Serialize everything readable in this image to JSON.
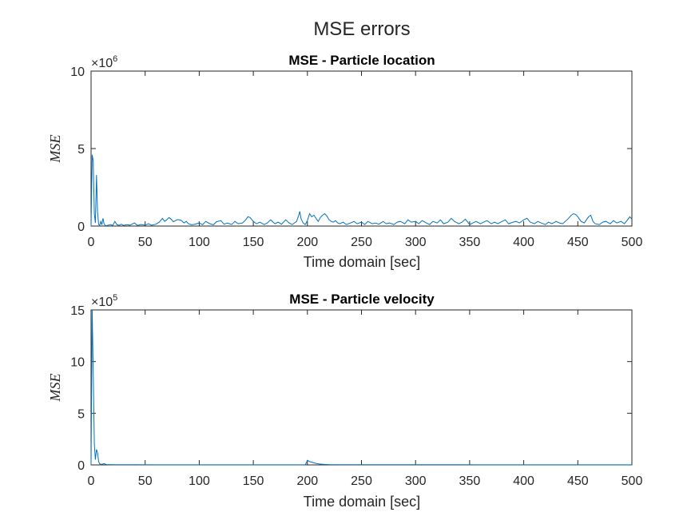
{
  "figure_title": "MSE errors",
  "chart_data": [
    {
      "type": "line",
      "title": "MSE - Particle location",
      "xlabel": "Time domain [sec]",
      "ylabel": "MSE",
      "xlim": [
        0,
        500
      ],
      "ylim": [
        0,
        10000000
      ],
      "exponent_label": "×10",
      "exponent_value": "6",
      "xticks": [
        "0",
        "50",
        "100",
        "150",
        "200",
        "250",
        "300",
        "350",
        "400",
        "450",
        "500"
      ],
      "yticks": [
        "0",
        "5",
        "10"
      ],
      "ytick_values": [
        0,
        5000000,
        10000000
      ],
      "line_color": "#0072BD",
      "grid": false,
      "series": [
        {
          "x": [
            0,
            1,
            2,
            3,
            4,
            5,
            6,
            7,
            8,
            9,
            10,
            11,
            12,
            13,
            14,
            16,
            18,
            20,
            22,
            24,
            26,
            28,
            30,
            33,
            36,
            40,
            43,
            46,
            50,
            53,
            56,
            60,
            63,
            66,
            68,
            70,
            72,
            74,
            76,
            78,
            80,
            83,
            86,
            88,
            90,
            93,
            96,
            100,
            103,
            106,
            110,
            113,
            116,
            120,
            123,
            126,
            130,
            133,
            136,
            140,
            143,
            145,
            147,
            150,
            153,
            156,
            160,
            163,
            166,
            170,
            173,
            176,
            180,
            183,
            186,
            190,
            192,
            193,
            194,
            196,
            198,
            200,
            202,
            204,
            206,
            208,
            210,
            212,
            214,
            216,
            218,
            220,
            222,
            224,
            226,
            228,
            230,
            233,
            236,
            240,
            243,
            246,
            250,
            253,
            256,
            260,
            263,
            266,
            270,
            273,
            276,
            280,
            283,
            286,
            290,
            293,
            296,
            300,
            303,
            306,
            310,
            313,
            316,
            320,
            323,
            326,
            330,
            333,
            336,
            340,
            343,
            346,
            350,
            353,
            356,
            360,
            363,
            366,
            370,
            373,
            376,
            380,
            383,
            386,
            390,
            393,
            396,
            400,
            403,
            406,
            410,
            413,
            416,
            420,
            423,
            426,
            430,
            433,
            436,
            440,
            442,
            444,
            446,
            448,
            450,
            453,
            456,
            458,
            460,
            462,
            464,
            466,
            470,
            473,
            476,
            480,
            483,
            486,
            490,
            493,
            496,
            498,
            500
          ],
          "y": [
            0,
            4600000,
            4200000,
            800000,
            200000,
            3300000,
            900000,
            100000,
            50000,
            300000,
            80000,
            500000,
            150000,
            40000,
            20000,
            60000,
            100000,
            40000,
            300000,
            80000,
            50000,
            120000,
            40000,
            90000,
            60000,
            200000,
            40000,
            100000,
            60000,
            150000,
            50000,
            120000,
            250000,
            500000,
            300000,
            400000,
            550000,
            450000,
            280000,
            350000,
            420000,
            380000,
            200000,
            300000,
            150000,
            80000,
            120000,
            200000,
            90000,
            300000,
            150000,
            80000,
            280000,
            350000,
            120000,
            200000,
            100000,
            300000,
            150000,
            200000,
            400000,
            600000,
            550000,
            300000,
            150000,
            250000,
            100000,
            200000,
            400000,
            150000,
            250000,
            120000,
            400000,
            200000,
            100000,
            300000,
            700000,
            950000,
            500000,
            200000,
            100000,
            350000,
            800000,
            600000,
            700000,
            500000,
            300000,
            550000,
            700000,
            800000,
            650000,
            400000,
            300000,
            250000,
            350000,
            200000,
            150000,
            250000,
            100000,
            200000,
            300000,
            150000,
            250000,
            100000,
            300000,
            150000,
            200000,
            120000,
            300000,
            150000,
            200000,
            100000,
            250000,
            300000,
            150000,
            400000,
            250000,
            300000,
            150000,
            350000,
            200000,
            100000,
            300000,
            200000,
            400000,
            150000,
            250000,
            500000,
            300000,
            150000,
            250000,
            450000,
            100000,
            200000,
            300000,
            150000,
            250000,
            350000,
            150000,
            250000,
            150000,
            300000,
            400000,
            150000,
            250000,
            300000,
            200000,
            400000,
            500000,
            250000,
            150000,
            300000,
            200000,
            100000,
            250000,
            150000,
            300000,
            200000,
            150000,
            400000,
            550000,
            700000,
            800000,
            750000,
            600000,
            300000,
            200000,
            400000,
            600000,
            700000,
            300000,
            150000,
            100000,
            250000,
            300000,
            150000,
            350000,
            200000,
            300000,
            150000,
            400000,
            600000,
            450000
          ]
        }
      ]
    },
    {
      "type": "line",
      "title": "MSE - Particle velocity",
      "xlabel": "Time domain [sec]",
      "ylabel": "MSE",
      "xlim": [
        0,
        500
      ],
      "ylim": [
        0,
        1500000
      ],
      "exponent_label": "×10",
      "exponent_value": "5",
      "xticks": [
        "0",
        "50",
        "100",
        "150",
        "200",
        "250",
        "300",
        "350",
        "400",
        "450",
        "500"
      ],
      "yticks": [
        "0",
        "5",
        "10",
        "15"
      ],
      "ytick_values": [
        0,
        500000,
        1000000,
        1500000
      ],
      "line_color": "#0072BD",
      "grid": false,
      "series": [
        {
          "x": [
            0,
            1,
            2,
            3,
            4,
            5,
            6,
            7,
            8,
            10,
            12,
            14,
            16,
            20,
            40,
            60,
            80,
            100,
            120,
            140,
            160,
            180,
            198,
            199,
            200,
            201,
            202,
            204,
            206,
            208,
            210,
            212,
            214,
            216,
            218,
            220,
            240,
            260,
            280,
            300,
            320,
            340,
            360,
            380,
            400,
            420,
            440,
            460,
            480,
            500
          ],
          "y": [
            0,
            1500000,
            900000,
            200000,
            50000,
            150000,
            120000,
            30000,
            10000,
            5000,
            12000,
            4000,
            3000,
            2000,
            1500,
            1000,
            1000,
            900,
            800,
            800,
            700,
            700,
            900,
            20000,
            45000,
            38000,
            32000,
            26000,
            20000,
            15000,
            11000,
            8000,
            6000,
            4500,
            3500,
            3000,
            2500,
            2000,
            1800,
            1500,
            1300,
            1200,
            1100,
            1000,
            900,
            900,
            800,
            800,
            700,
            700
          ]
        }
      ]
    }
  ]
}
